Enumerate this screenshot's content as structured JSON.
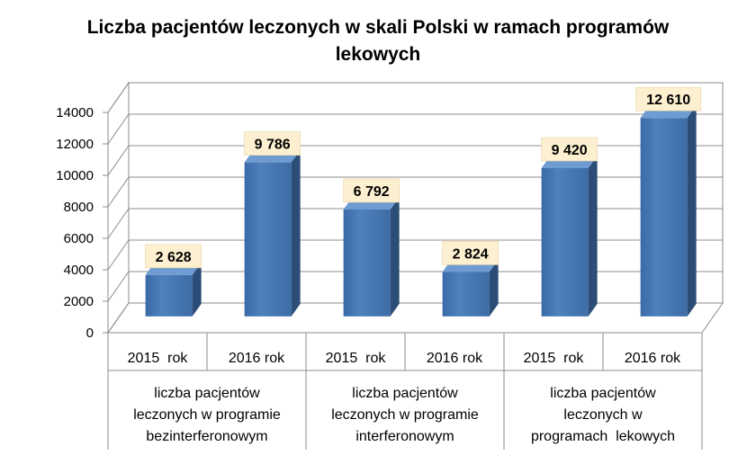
{
  "chart_data": {
    "type": "bar",
    "title": "Liczba pacjentów leczonych w skali Polski w ramach programów lekowych",
    "categories": [
      "2015  rok",
      "2016 rok",
      "2015  rok",
      "2016 rok",
      "2015  rok",
      "2016 rok"
    ],
    "groups": [
      "liczba pacjentów leczonych w programie bezinterferonowym",
      "liczba pacjentów leczonych w programie interferonowym",
      "liczba pacjentów leczonych w programach  lekowych"
    ],
    "values": [
      2628,
      9786,
      6792,
      2824,
      9420,
      12610
    ],
    "data_labels": [
      "2 628",
      "9 786",
      "6 792",
      "2 824",
      "9 420",
      "12 610"
    ],
    "yticks": [
      "0",
      "2000",
      "4000",
      "6000",
      "8000",
      "10000",
      "12000",
      "14000"
    ],
    "ylim": [
      0,
      14000
    ],
    "grid": true,
    "legend": "none",
    "bar_color": "#4F81BD",
    "label_box_color": "#FDF0D0"
  }
}
